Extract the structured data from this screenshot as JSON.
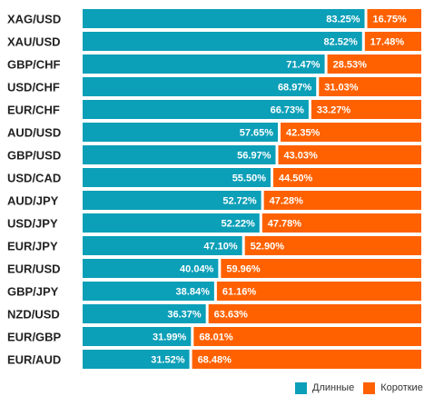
{
  "chart_data": {
    "type": "bar",
    "orientation": "horizontal",
    "stacked": true,
    "xlim": [
      0,
      100
    ],
    "grid": false,
    "legend_position": "bottom-right",
    "categories": [
      "XAG/USD",
      "XAU/USD",
      "GBP/CHF",
      "USD/CHF",
      "EUR/CHF",
      "AUD/USD",
      "GBP/USD",
      "USD/CAD",
      "AUD/JPY",
      "USD/JPY",
      "EUR/JPY",
      "EUR/USD",
      "GBP/JPY",
      "NZD/USD",
      "EUR/GBP",
      "EUR/AUD"
    ],
    "series": [
      {
        "name": "Длинные",
        "color": "#0c9fb8",
        "values": [
          83.25,
          82.52,
          71.47,
          68.97,
          66.73,
          57.65,
          56.97,
          55.5,
          52.72,
          52.22,
          47.1,
          40.04,
          38.84,
          36.37,
          31.99,
          31.52
        ],
        "labels": [
          "83.25%",
          "82.52%",
          "71.47%",
          "68.97%",
          "66.73%",
          "57.65%",
          "56.97%",
          "55.50%",
          "52.72%",
          "52.22%",
          "47.10%",
          "40.04%",
          "38.84%",
          "36.37%",
          "31.99%",
          "31.52%"
        ]
      },
      {
        "name": "Короткие",
        "color": "#ff6100",
        "values": [
          16.75,
          17.48,
          28.53,
          31.03,
          33.27,
          42.35,
          43.03,
          44.5,
          47.28,
          47.78,
          52.9,
          59.96,
          61.16,
          63.63,
          68.01,
          68.48
        ],
        "labels": [
          "16.75%",
          "17.48%",
          "28.53%",
          "31.03%",
          "33.27%",
          "42.35%",
          "43.03%",
          "44.50%",
          "47.28%",
          "47.78%",
          "52.90%",
          "59.96%",
          "61.16%",
          "63.63%",
          "68.01%",
          "68.48%"
        ]
      }
    ]
  },
  "legend": {
    "long_label": "Длинные",
    "short_label": "Короткие"
  }
}
